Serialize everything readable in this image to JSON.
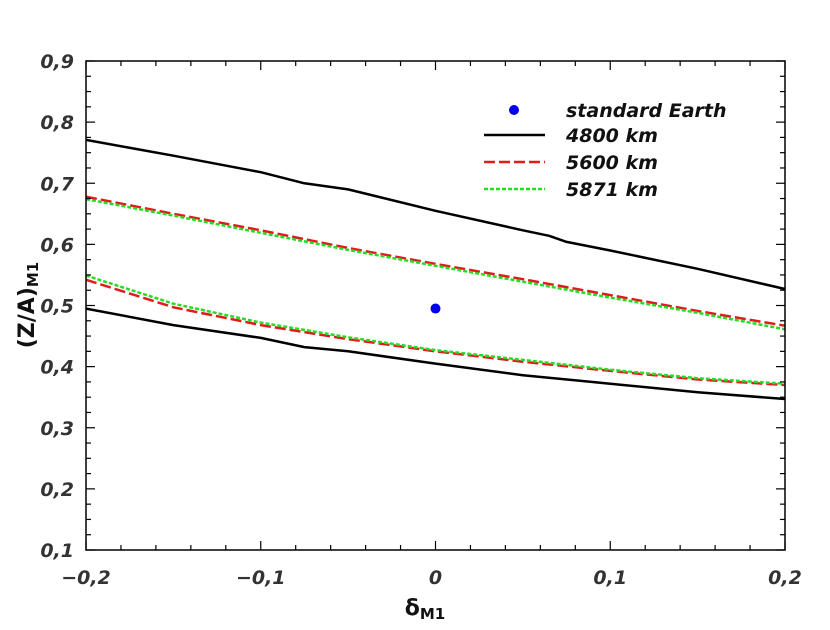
{
  "chart_data": {
    "type": "line",
    "xlabel": "δ",
    "xlabel_sub": "M1",
    "ylabel": "(Z/A)",
    "ylabel_sub": "M1",
    "xlim": [
      -0.2,
      0.2
    ],
    "ylim": [
      0.1,
      0.9
    ],
    "xticks": [
      -0.2,
      -0.1,
      0,
      0.1,
      0.2
    ],
    "xtick_labels": [
      "−0,2",
      "−0,1",
      "0",
      "0,1",
      "0,2"
    ],
    "yticks": [
      0.1,
      0.2,
      0.3,
      0.4,
      0.5,
      0.6,
      0.7,
      0.8,
      0.9
    ],
    "ytick_labels": [
      "0,1",
      "0,2",
      "0,3",
      "0,4",
      "0,5",
      "0,6",
      "0,7",
      "0,8",
      "0,9"
    ],
    "grid": false,
    "legend_position": "top-right",
    "point": {
      "name": "standard Earth",
      "x": 0.0,
      "y": 0.495,
      "color": "#0000ee"
    },
    "series": [
      {
        "name": "4800 km",
        "color": "#000000",
        "dash": "solid",
        "upper": {
          "x": [
            -0.2,
            -0.15,
            -0.1,
            -0.075,
            -0.05,
            0,
            0.05,
            0.065,
            0.075,
            0.1,
            0.15,
            0.2
          ],
          "y": [
            0.771,
            0.745,
            0.718,
            0.7,
            0.69,
            0.655,
            0.623,
            0.614,
            0.604,
            0.59,
            0.56,
            0.527
          ]
        },
        "lower": {
          "x": [
            -0.2,
            -0.15,
            -0.1,
            -0.075,
            -0.05,
            0,
            0.05,
            0.1,
            0.15,
            0.2
          ],
          "y": [
            0.495,
            0.468,
            0.447,
            0.432,
            0.425,
            0.405,
            0.386,
            0.372,
            0.358,
            0.347
          ]
        }
      },
      {
        "name": "5600 km",
        "color": "#e31a1c",
        "dash": "long-dash",
        "upper": {
          "x": [
            -0.2,
            -0.15,
            -0.1,
            -0.05,
            0,
            0.05,
            0.1,
            0.15,
            0.2
          ],
          "y": [
            0.678,
            0.65,
            0.623,
            0.594,
            0.568,
            0.543,
            0.517,
            0.491,
            0.467
          ]
        },
        "lower": {
          "x": [
            -0.2,
            -0.15,
            -0.1,
            -0.05,
            0,
            0.05,
            0.1,
            0.15,
            0.2
          ],
          "y": [
            0.542,
            0.497,
            0.468,
            0.445,
            0.425,
            0.408,
            0.393,
            0.379,
            0.37
          ]
        }
      },
      {
        "name": "5871 km",
        "color": "#22dd22",
        "dash": "short-dash",
        "upper": {
          "x": [
            -0.2,
            -0.15,
            -0.1,
            -0.05,
            0,
            0.05,
            0.1,
            0.15,
            0.2
          ],
          "y": [
            0.674,
            0.647,
            0.619,
            0.591,
            0.565,
            0.539,
            0.513,
            0.488,
            0.461
          ]
        },
        "lower": {
          "x": [
            -0.2,
            -0.15,
            -0.1,
            -0.05,
            0,
            0.05,
            0.1,
            0.15,
            0.2
          ],
          "y": [
            0.549,
            0.503,
            0.472,
            0.448,
            0.427,
            0.411,
            0.395,
            0.381,
            0.372
          ]
        }
      }
    ]
  }
}
